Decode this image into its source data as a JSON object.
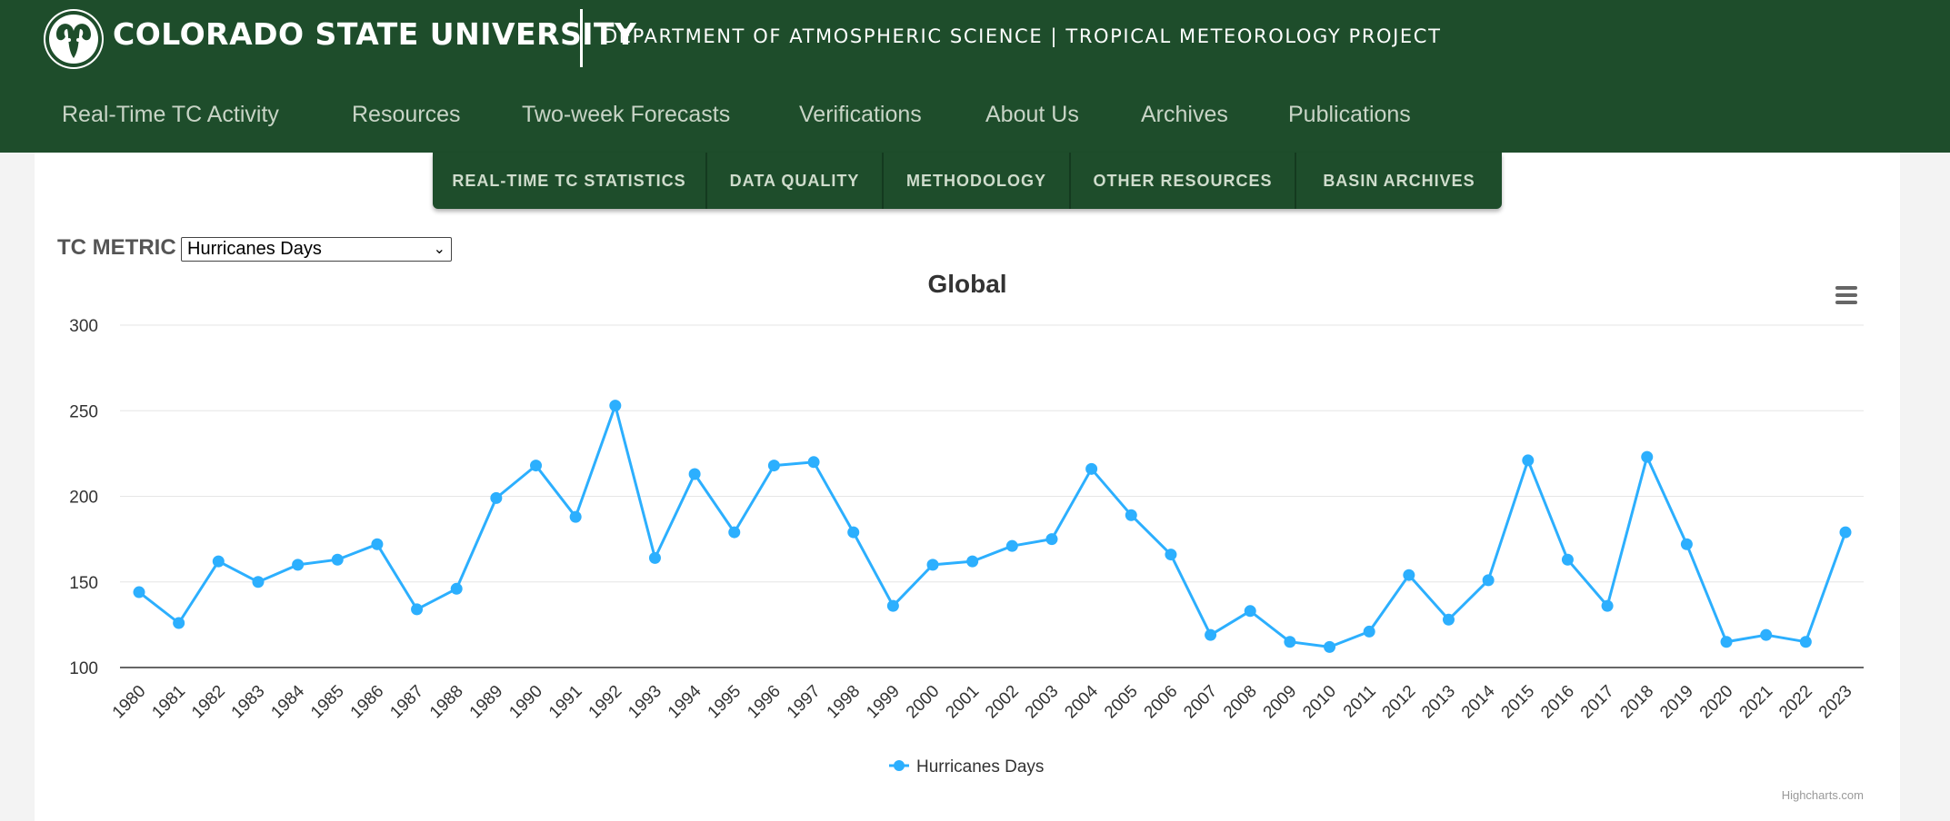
{
  "header": {
    "university": "COLORADO STATE UNIVERSITY",
    "department": "DEPARTMENT OF ATMOSPHERIC SCIENCE | TROPICAL METEOROLOGY PROJECT"
  },
  "nav": {
    "items": [
      "Real-Time TC Activity",
      "Resources",
      "Two-week Forecasts",
      "Verifications",
      "About Us",
      "Archives",
      "Publications"
    ]
  },
  "subnav": {
    "tabs": [
      "REAL-TIME TC STATISTICS",
      "DATA QUALITY",
      "METHODOLOGY",
      "OTHER RESOURCES",
      "BASIN ARCHIVES"
    ]
  },
  "metric": {
    "label": "TC METRIC",
    "selected": "Hurricanes Days"
  },
  "colors": {
    "brand_green": "#1e4d2b",
    "series": "#2caffe"
  },
  "credits": "Highcharts.com",
  "chart_data": {
    "type": "line",
    "title": "Global",
    "xlabel": "",
    "ylabel": "",
    "ylim": [
      100,
      300
    ],
    "yticks": [
      100,
      150,
      200,
      250,
      300
    ],
    "grid": true,
    "legend_position": "bottom-center",
    "x": [
      "1980",
      "1981",
      "1982",
      "1983",
      "1984",
      "1985",
      "1986",
      "1987",
      "1988",
      "1989",
      "1990",
      "1991",
      "1992",
      "1993",
      "1994",
      "1995",
      "1996",
      "1997",
      "1998",
      "1999",
      "2000",
      "2001",
      "2002",
      "2003",
      "2004",
      "2005",
      "2006",
      "2007",
      "2008",
      "2009",
      "2010",
      "2011",
      "2012",
      "2013",
      "2014",
      "2015",
      "2016",
      "2017",
      "2018",
      "2019",
      "2020",
      "2021",
      "2022",
      "2023"
    ],
    "series": [
      {
        "name": "Hurricanes Days",
        "values": [
          144,
          126,
          162,
          150,
          160,
          163,
          172,
          134,
          146,
          199,
          218,
          188,
          253,
          164,
          213,
          179,
          218,
          220,
          179,
          136,
          160,
          162,
          171,
          175,
          216,
          189,
          166,
          119,
          133,
          115,
          112,
          121,
          154,
          128,
          151,
          221,
          163,
          136,
          223,
          172,
          115,
          119,
          115,
          179
        ]
      }
    ]
  }
}
